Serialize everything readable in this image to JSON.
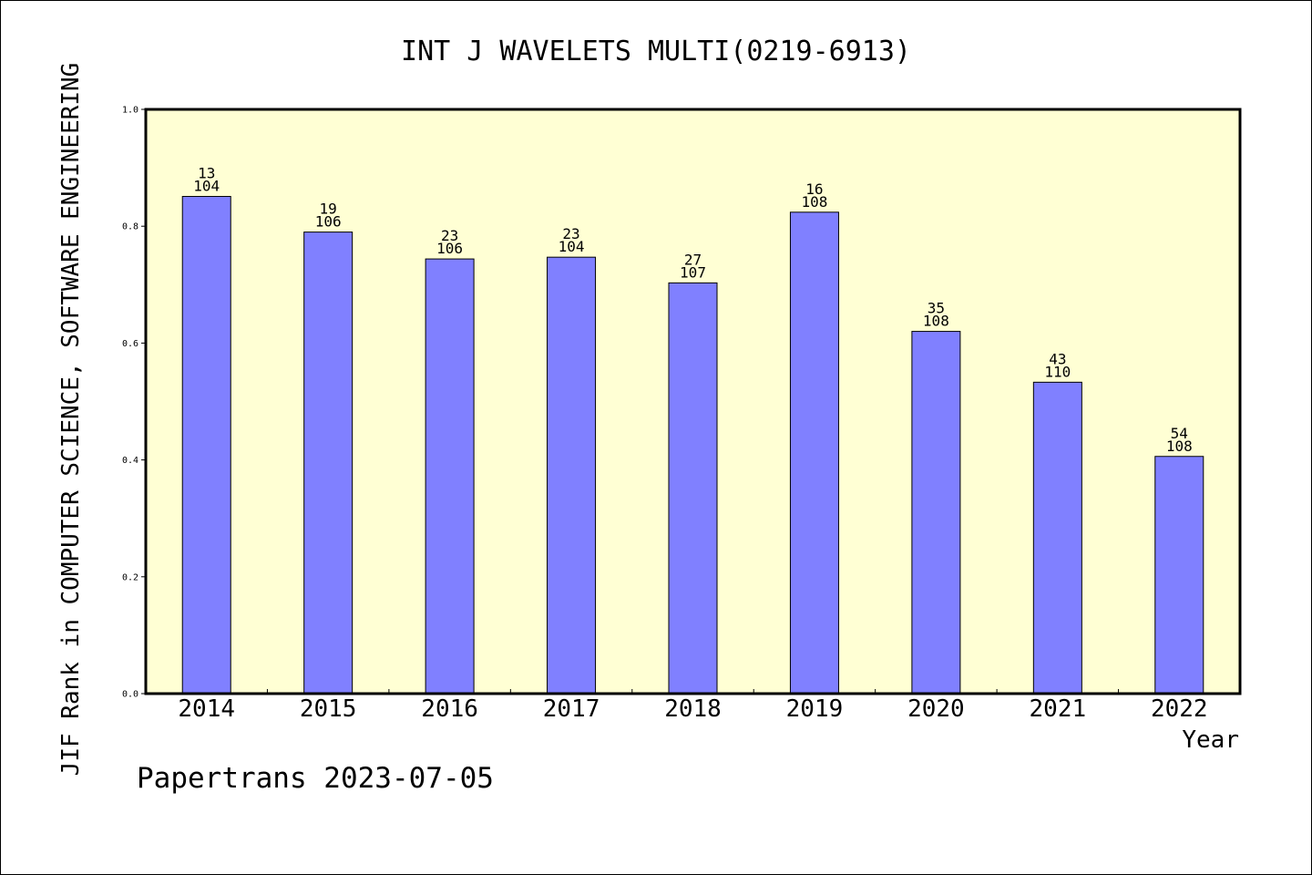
{
  "chart_data": {
    "type": "bar",
    "title": "INT J WAVELETS MULTI(0219-6913)",
    "xlabel": "Year",
    "ylabel": "JIF Rank in COMPUTER SCIENCE, SOFTWARE ENGINEERING",
    "categories": [
      "2014",
      "2015",
      "2016",
      "2017",
      "2018",
      "2019",
      "2020",
      "2021",
      "2022"
    ],
    "values": [
      0.851,
      0.79,
      0.744,
      0.747,
      0.703,
      0.824,
      0.62,
      0.533,
      0.406
    ],
    "bar_labels": [
      {
        "rank": "13",
        "total": "104"
      },
      {
        "rank": "19",
        "total": "106"
      },
      {
        "rank": "23",
        "total": "106"
      },
      {
        "rank": "23",
        "total": "104"
      },
      {
        "rank": "27",
        "total": "107"
      },
      {
        "rank": "16",
        "total": "108"
      },
      {
        "rank": "35",
        "total": "108"
      },
      {
        "rank": "43",
        "total": "110"
      },
      {
        "rank": "54",
        "total": "108"
      }
    ],
    "ylim": [
      0,
      1.0
    ],
    "yticks": [
      "0.0",
      "0.2",
      "0.4",
      "0.6",
      "0.8",
      "1.0"
    ],
    "grid": false,
    "colors": {
      "plot_background": "#ffffd4",
      "bar_fill": "#8080ff",
      "bar_stroke": "#000000"
    }
  },
  "footer": {
    "watermark": "Papertrans 2023-07-05"
  }
}
